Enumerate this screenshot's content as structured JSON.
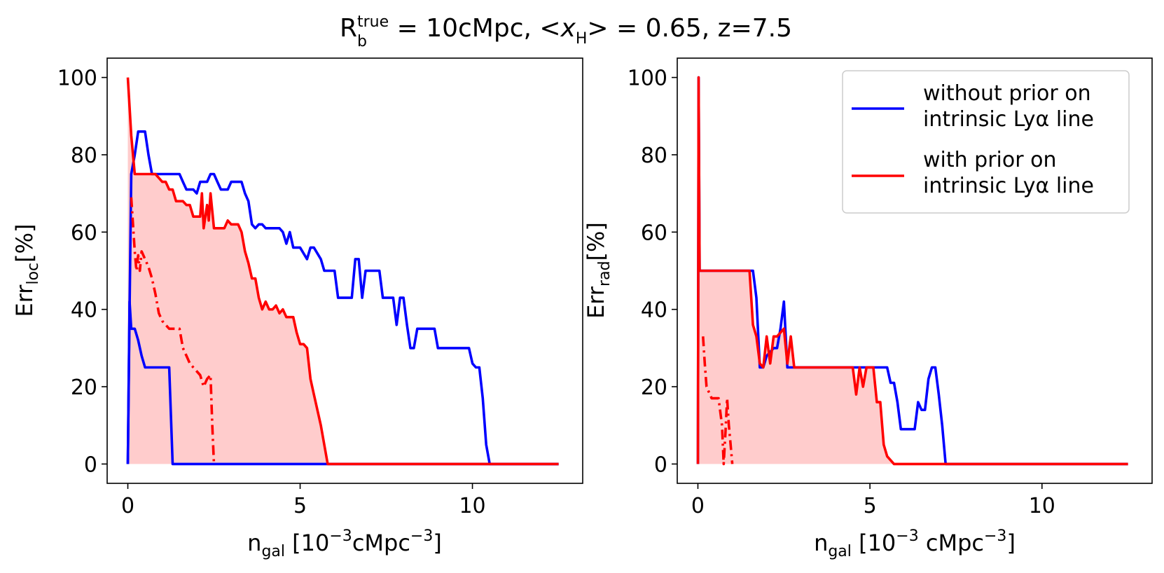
{
  "figure": {
    "title_prefix": "R",
    "title_sub": "b",
    "title_sup": "true",
    "title_mid": " = 10cMpc, <",
    "title_x": "x",
    "title_xsub": "H",
    "title_suffix": "> = 0.65, z=7.5"
  },
  "legend": {
    "entries": [
      {
        "line1": "without prior on",
        "line2": "intrinsic Lyα line",
        "color": "#0000ff"
      },
      {
        "line1": "with prior on",
        "line2": "intrinsic Lyα line",
        "color": "#ff0000"
      }
    ]
  },
  "colors": {
    "blue": "#0000ff",
    "red": "#ff0000",
    "fill": "#ffcccc"
  },
  "chart_data": [
    {
      "type": "line",
      "panel": "left",
      "ylabel_main": "Err",
      "ylabel_sub": "loc",
      "ylabel_suffix": "[%]",
      "xlabel_main": "n",
      "xlabel_sub": "gal",
      "xlabel_pre": " [10",
      "xlabel_exp1": "−3",
      "xlabel_mid": "cMpc",
      "xlabel_exp2": "−3",
      "xlabel_end": "]",
      "xlim": [
        -0.6,
        13.2
      ],
      "ylim": [
        -5,
        105
      ],
      "xticks": [
        0,
        5,
        10
      ],
      "yticks": [
        0,
        20,
        40,
        60,
        80,
        100
      ],
      "fill_between": {
        "x": [
          0,
          0.1,
          0.2,
          0.6,
          0.8,
          1.0,
          1.1,
          1.2,
          1.3,
          1.4,
          1.5,
          1.6,
          1.7,
          1.8,
          1.9,
          2.0,
          2.1,
          2.15,
          2.2,
          2.3,
          2.35,
          2.4,
          2.5,
          2.8,
          2.9,
          3.0,
          3.1,
          3.2,
          3.3,
          3.4,
          3.5,
          3.6,
          3.7,
          3.8,
          3.9,
          4.0,
          4.1,
          4.2,
          4.3,
          4.4,
          4.5,
          4.6,
          4.8,
          4.9,
          5.0,
          5.1,
          5.2,
          5.3,
          5.4,
          5.6,
          5.7,
          5.8
        ],
        "y": [
          100,
          85,
          75,
          75,
          75,
          73,
          73,
          71,
          71,
          68,
          68,
          68,
          67,
          67,
          64,
          64,
          64,
          70,
          61,
          67,
          63,
          70,
          61,
          61,
          63,
          62,
          62,
          62,
          60,
          55,
          52,
          48,
          48,
          43,
          40,
          42,
          40,
          40,
          41,
          39,
          40,
          38,
          38,
          34,
          31,
          31,
          30,
          22,
          18,
          10,
          5,
          0
        ]
      },
      "series": [
        {
          "color": "#0000ff",
          "style": "solid",
          "x": [
            0,
            0.05,
            0.1,
            0.2,
            0.3,
            0.5,
            0.6,
            0.7,
            0.9,
            1.0,
            1.1,
            1.5,
            1.6,
            1.7,
            1.8,
            1.9,
            2.0,
            2.1,
            2.2,
            2.3,
            2.4,
            2.5,
            2.6,
            2.7,
            2.8,
            2.9,
            3.0,
            3.1,
            3.2,
            3.3,
            3.4,
            3.5,
            3.6,
            3.7,
            3.8,
            3.9,
            4.0,
            4.1,
            4.2,
            4.3,
            4.4,
            4.5,
            4.6,
            4.7,
            4.8,
            4.9,
            5.0,
            5.2,
            5.3,
            5.4,
            5.6,
            5.7,
            5.8,
            5.9,
            6.0,
            6.1,
            6.2,
            6.4,
            6.5,
            6.6,
            6.7,
            6.8,
            6.9,
            7.0,
            7.1,
            7.2,
            7.3,
            7.4,
            7.5,
            7.6,
            7.7,
            7.8,
            7.9,
            8.0,
            8.1,
            8.2,
            8.3,
            8.4,
            8.5,
            8.8,
            8.9,
            9.0,
            9.1,
            9.2,
            9.3,
            9.4,
            9.5,
            9.6,
            9.7,
            9.8,
            9.9,
            10.0,
            10.1,
            10.2,
            10.3,
            10.4,
            10.5,
            12.5
          ],
          "y": [
            0,
            40,
            75,
            80,
            86,
            86,
            80,
            75,
            75,
            75,
            75,
            75,
            73,
            71,
            71,
            71,
            70,
            73,
            73,
            73,
            75,
            75,
            73,
            71,
            71,
            71,
            73,
            73,
            73,
            73,
            70,
            68,
            62,
            61,
            62,
            62,
            61,
            61,
            61,
            61,
            61,
            60,
            57,
            60,
            56,
            56,
            56,
            53,
            56,
            56,
            53,
            50,
            50,
            50,
            50,
            43,
            43,
            43,
            43,
            53,
            53,
            43,
            50,
            50,
            50,
            50,
            50,
            43,
            43,
            43,
            43,
            36,
            43,
            43,
            36,
            30,
            30,
            35,
            35,
            35,
            35,
            30,
            30,
            30,
            30,
            30,
            30,
            30,
            30,
            30,
            30,
            26,
            25,
            25,
            17,
            5,
            0,
            0
          ]
        },
        {
          "color": "#0000ff",
          "style": "solid",
          "x": [
            0,
            0.05,
            0.1,
            0.2,
            0.3,
            0.4,
            0.5,
            0.6,
            0.8,
            1.0,
            1.1,
            1.2,
            1.3,
            12.5
          ],
          "y": [
            0,
            42,
            35,
            35,
            32,
            28,
            25,
            25,
            25,
            25,
            25,
            25,
            0,
            0
          ]
        },
        {
          "color": "#ff0000",
          "style": "solid",
          "x": [
            0,
            0.1,
            0.2,
            0.6,
            0.8,
            1.0,
            1.1,
            1.2,
            1.3,
            1.4,
            1.5,
            1.6,
            1.7,
            1.8,
            1.9,
            2.0,
            2.1,
            2.15,
            2.2,
            2.3,
            2.35,
            2.4,
            2.5,
            2.8,
            2.9,
            3.0,
            3.1,
            3.2,
            3.3,
            3.4,
            3.5,
            3.6,
            3.7,
            3.8,
            3.9,
            4.0,
            4.1,
            4.2,
            4.3,
            4.4,
            4.5,
            4.6,
            4.8,
            4.9,
            5.0,
            5.1,
            5.2,
            5.3,
            5.4,
            5.6,
            5.7,
            5.8,
            12.5
          ],
          "y": [
            100,
            85,
            75,
            75,
            75,
            73,
            73,
            71,
            71,
            68,
            68,
            68,
            67,
            67,
            64,
            64,
            64,
            70,
            61,
            67,
            63,
            70,
            61,
            61,
            63,
            62,
            62,
            62,
            60,
            55,
            52,
            48,
            48,
            43,
            40,
            42,
            40,
            40,
            41,
            39,
            40,
            38,
            38,
            34,
            31,
            31,
            30,
            22,
            18,
            10,
            5,
            0,
            0
          ]
        },
        {
          "color": "#ff0000",
          "style": "dashdot",
          "x": [
            0.1,
            0.2,
            0.25,
            0.3,
            0.35,
            0.4,
            0.5,
            0.6,
            0.7,
            0.8,
            0.9,
            1.0,
            1.1,
            1.2,
            1.3,
            1.4,
            1.5,
            1.6,
            1.7,
            1.8,
            1.9,
            2.0,
            2.1,
            2.2,
            2.3,
            2.4,
            2.45,
            2.5
          ],
          "y": [
            69,
            55,
            50,
            54,
            50,
            55,
            53,
            51,
            48,
            44,
            39,
            37,
            36,
            35,
            35,
            35,
            35,
            30,
            28,
            26,
            25,
            24,
            23,
            20,
            22,
            23,
            10,
            0
          ]
        }
      ]
    },
    {
      "type": "line",
      "panel": "right",
      "ylabel_main": "Err",
      "ylabel_sub": "rad",
      "ylabel_suffix": "[%]",
      "xlabel_main": "n",
      "xlabel_sub": "gal",
      "xlabel_pre": " [10",
      "xlabel_exp1": "−3",
      "xlabel_mid": " cMpc",
      "xlabel_exp2": "−3",
      "xlabel_end": "]",
      "xlim": [
        -0.6,
        13.2
      ],
      "ylim": [
        -5,
        105
      ],
      "xticks": [
        0,
        5,
        10
      ],
      "yticks": [
        0,
        20,
        40,
        60,
        80,
        100
      ],
      "fill_between": {
        "x": [
          0,
          0.02,
          0.05,
          1.5,
          1.6,
          1.7,
          1.8,
          1.9,
          2.0,
          2.1,
          2.2,
          2.3,
          2.4,
          2.5,
          2.6,
          2.7,
          2.8,
          2.9,
          3.0,
          3.1,
          3.2,
          4.5,
          4.6,
          4.7,
          4.8,
          4.9,
          5.0,
          5.1,
          5.2,
          5.3,
          5.4,
          5.5,
          5.6,
          5.7
        ],
        "y": [
          0,
          100,
          50,
          50,
          36,
          33,
          26,
          25,
          33,
          26,
          33,
          33,
          34,
          35,
          26,
          33,
          25,
          25,
          25,
          25,
          25,
          25,
          18,
          25,
          20,
          25,
          25,
          25,
          16,
          16,
          5,
          2,
          1,
          0
        ]
      },
      "series": [
        {
          "color": "#0000ff",
          "style": "solid",
          "x": [
            0,
            0.02,
            0.05,
            1.5,
            1.6,
            1.7,
            1.8,
            1.9,
            2.0,
            2.1,
            2.2,
            2.3,
            2.4,
            2.5,
            2.6,
            2.7,
            2.8,
            3.0,
            3.5,
            4.0,
            4.5,
            5.0,
            5.5,
            5.6,
            5.7,
            5.8,
            5.9,
            6.0,
            6.1,
            6.3,
            6.4,
            6.5,
            6.6,
            6.7,
            6.8,
            6.9,
            7.0,
            7.1,
            7.2,
            12.5
          ],
          "y": [
            0,
            100,
            50,
            50,
            50,
            43,
            25,
            25,
            28,
            29,
            30,
            30,
            35,
            42,
            25,
            25,
            25,
            25,
            25,
            25,
            25,
            25,
            25,
            21,
            21,
            16,
            9,
            9,
            9,
            9,
            16,
            14,
            14,
            22,
            25,
            25,
            18,
            10,
            0,
            0
          ]
        },
        {
          "color": "#ff0000",
          "style": "solid",
          "x": [
            0,
            0.02,
            0.05,
            1.5,
            1.6,
            1.7,
            1.8,
            1.9,
            2.0,
            2.1,
            2.2,
            2.3,
            2.4,
            2.5,
            2.6,
            2.7,
            2.8,
            2.9,
            3.0,
            3.1,
            3.2,
            4.5,
            4.6,
            4.7,
            4.8,
            4.9,
            5.0,
            5.1,
            5.2,
            5.3,
            5.4,
            5.5,
            5.6,
            5.7,
            12.5
          ],
          "y": [
            0,
            100,
            50,
            50,
            36,
            33,
            26,
            25,
            33,
            26,
            33,
            33,
            34,
            35,
            26,
            33,
            25,
            25,
            25,
            25,
            25,
            25,
            18,
            25,
            20,
            25,
            25,
            25,
            16,
            16,
            5,
            2,
            1,
            0,
            0
          ]
        },
        {
          "color": "#ff0000",
          "style": "dashdot",
          "x": [
            0.15,
            0.2,
            0.25,
            0.3,
            0.35,
            0.4,
            0.5,
            0.6,
            0.7,
            0.75,
            0.8,
            0.85,
            0.9,
            0.95,
            1.0
          ],
          "y": [
            33,
            26,
            20,
            19,
            18,
            17,
            17,
            17,
            10,
            0,
            8,
            17,
            10,
            5,
            0
          ]
        }
      ]
    }
  ]
}
